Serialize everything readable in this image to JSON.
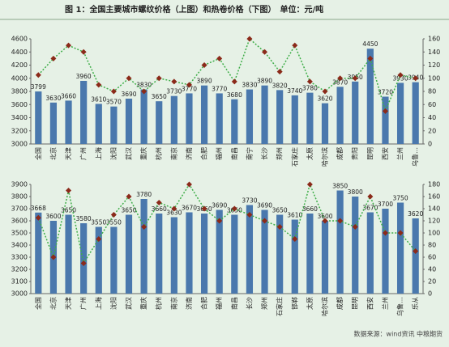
{
  "title": "图 1：全国主要城市螺纹价格（上图）和热卷价格（下图）　单位：元/吨",
  "source": "数据来源：wind资讯 中粮期货",
  "chart_data": [
    {
      "type": "bar",
      "categories": [
        "全国",
        "北京",
        "天津",
        "广州",
        "上海",
        "沈阳",
        "武汉",
        "重庆",
        "杭州",
        "南京",
        "济南",
        "合肥",
        "福州",
        "南昌",
        "南宁",
        "长沙",
        "郑州",
        "石家庄",
        "太原",
        "哈尔滨",
        "成都",
        "贵阳",
        "昆明",
        "西安",
        "兰州",
        "乌鲁…"
      ],
      "series": [
        {
          "type": "bar",
          "color": "#4a78ad",
          "values": [
            3799,
            3630,
            3660,
            3960,
            3610,
            3570,
            3690,
            3830,
            3650,
            3730,
            3770,
            3890,
            3770,
            3680,
            3830,
            3890,
            3820,
            3740,
            3780,
            3620,
            3870,
            3950,
            4450,
            3720,
            3930,
            3940
          ]
        },
        {
          "type": "line",
          "axis": "y2",
          "color": "#3fae49",
          "marker_color": "#8b2a1a",
          "values": [
            105,
            130,
            150,
            140,
            90,
            80,
            100,
            80,
            100,
            95,
            90,
            120,
            130,
            95,
            160,
            140,
            110,
            150,
            95,
            80,
            100,
            100,
            130,
            50,
            105,
            100
          ]
        }
      ],
      "ylim": [
        3000,
        4600
      ],
      "yticks": [
        3000,
        3200,
        3400,
        3600,
        3800,
        4000,
        4200,
        4400,
        4600
      ],
      "y2lim": [
        0,
        160
      ],
      "y2ticks": [
        0,
        20,
        40,
        60,
        80,
        100,
        120,
        140,
        160
      ]
    },
    {
      "type": "bar",
      "categories": [
        "全国",
        "北京",
        "天津",
        "广州",
        "上海",
        "沈阳",
        "武汉",
        "重庆",
        "杭州",
        "南京",
        "济南",
        "合肥",
        "福州",
        "南昌",
        "长沙",
        "郑州",
        "石家庄",
        "邯郸",
        "太原",
        "哈尔滨",
        "成都",
        "昆明",
        "西安",
        "兰州",
        "乌鲁…",
        "乐从"
      ],
      "series": [
        {
          "type": "bar",
          "color": "#4a78ad",
          "values": [
            3668,
            3600,
            3650,
            3580,
            3550,
            3550,
            3650,
            3780,
            3660,
            3630,
            3670,
            3660,
            3690,
            3650,
            3730,
            3690,
            3650,
            3610,
            3660,
            3600,
            3850,
            3800,
            3670,
            3700,
            3750,
            3620
          ]
        },
        {
          "type": "line",
          "axis": "y2",
          "color": "#3fae49",
          "marker_color": "#8b2a1a",
          "values": [
            125,
            60,
            170,
            50,
            90,
            130,
            160,
            110,
            150,
            140,
            180,
            140,
            120,
            140,
            130,
            120,
            110,
            90,
            180,
            120,
            120,
            110,
            160,
            100,
            100,
            70
          ]
        }
      ],
      "ylim": [
        3000,
        3900
      ],
      "yticks": [
        3000,
        3100,
        3200,
        3300,
        3400,
        3500,
        3600,
        3700,
        3800,
        3900
      ],
      "y2lim": [
        0,
        180
      ],
      "y2ticks": [
        0,
        20,
        40,
        60,
        80,
        100,
        120,
        140,
        160,
        180
      ]
    }
  ]
}
